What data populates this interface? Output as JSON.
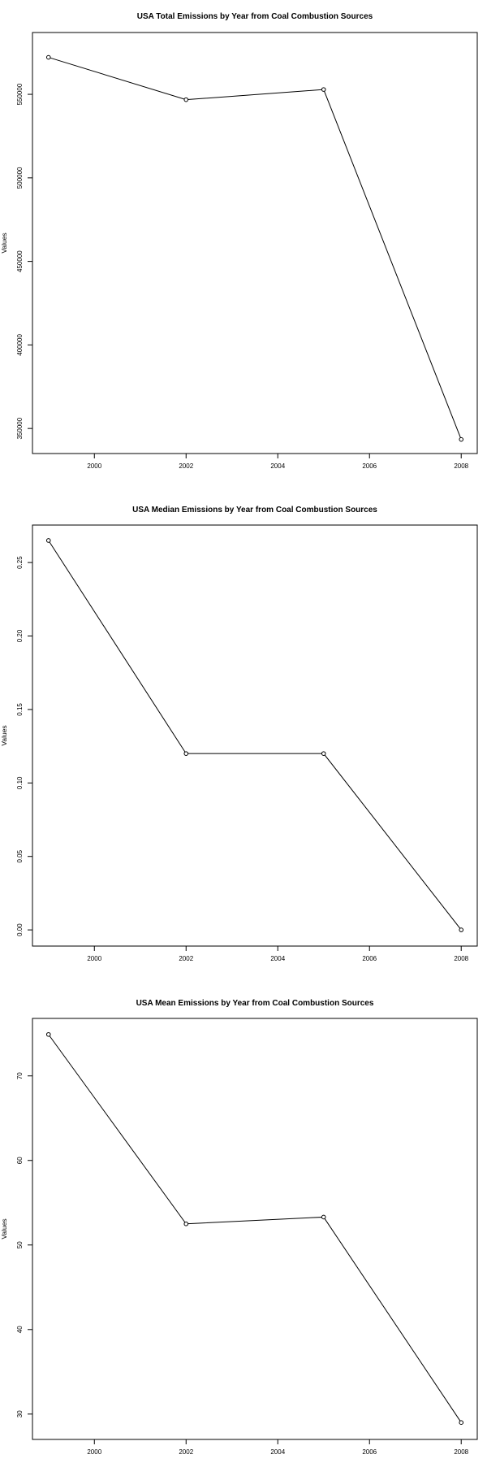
{
  "chart_data": [
    {
      "type": "line",
      "title": "USA Total Emissions by Year from Coal Combustion Sources",
      "xlabel": "",
      "ylabel": "Values",
      "x": [
        1999,
        2002,
        2005,
        2008
      ],
      "series": [
        {
          "values": [
            572126,
            546789,
            552881,
            343432
          ]
        }
      ],
      "xlim": [
        1998.65,
        2008.35
      ],
      "ylim": [
        335000,
        587000
      ],
      "xticks": [
        2000,
        2002,
        2004,
        2006,
        2008
      ],
      "xtick_labels": [
        "2000",
        "2002",
        "2004",
        "2006",
        "2008"
      ],
      "yticks": [
        350000,
        400000,
        450000,
        500000,
        550000
      ],
      "ytick_labels": [
        "350000",
        "400000",
        "450000",
        "500000",
        "550000"
      ],
      "grid": false,
      "marker": "open-circle",
      "line_color": "#000000"
    },
    {
      "type": "line",
      "title": "USA Median Emissions by Year from Coal Combustion Sources",
      "xlabel": "",
      "ylabel": "Values",
      "x": [
        1999,
        2002,
        2005,
        2008
      ],
      "series": [
        {
          "values": [
            0.265,
            0.12,
            0.12,
            0.0
          ]
        }
      ],
      "xlim": [
        1998.65,
        2008.35
      ],
      "ylim": [
        -0.011,
        0.2755
      ],
      "xticks": [
        2000,
        2002,
        2004,
        2006,
        2008
      ],
      "xtick_labels": [
        "2000",
        "2002",
        "2004",
        "2006",
        "2008"
      ],
      "yticks": [
        0.0,
        0.05,
        0.1,
        0.15,
        0.2,
        0.25
      ],
      "ytick_labels": [
        "0.00",
        "0.05",
        "0.10",
        "0.15",
        "0.20",
        "0.25"
      ],
      "grid": false,
      "marker": "open-circle",
      "line_color": "#000000"
    },
    {
      "type": "line",
      "title": "USA Mean Emissions by Year from Coal Combustion Sources",
      "xlabel": "",
      "ylabel": "Values",
      "x": [
        1999,
        2002,
        2005,
        2008
      ],
      "series": [
        {
          "values": [
            74.9,
            52.5,
            53.3,
            29.0
          ]
        }
      ],
      "xlim": [
        1998.65,
        2008.35
      ],
      "ylim": [
        27.0,
        76.8
      ],
      "xticks": [
        2000,
        2002,
        2004,
        2006,
        2008
      ],
      "xtick_labels": [
        "2000",
        "2002",
        "2004",
        "2006",
        "2008"
      ],
      "yticks": [
        30,
        40,
        50,
        60,
        70
      ],
      "ytick_labels": [
        "30",
        "40",
        "50",
        "60",
        "70"
      ],
      "grid": false,
      "marker": "open-circle",
      "line_color": "#000000"
    }
  ]
}
